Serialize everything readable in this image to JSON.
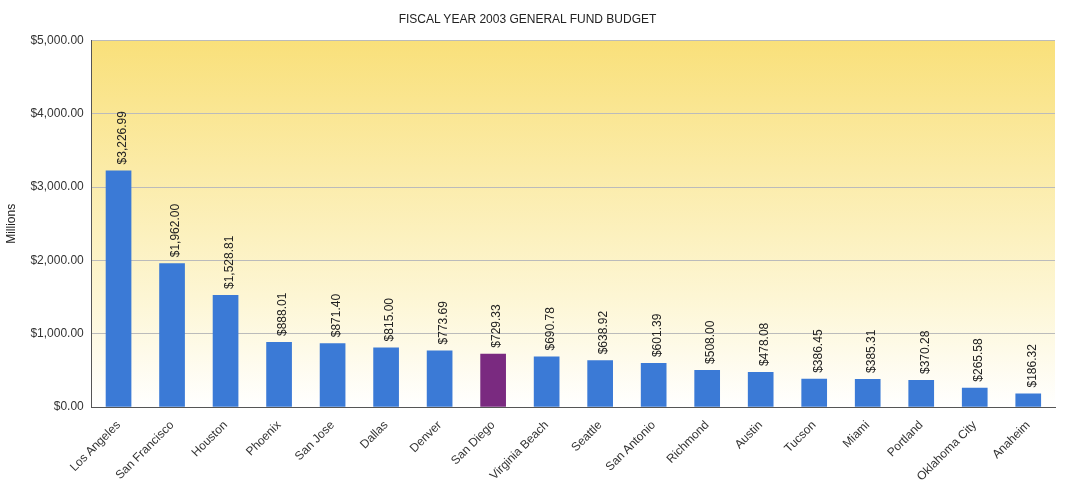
{
  "chart_data": {
    "type": "bar",
    "title": "FISCAL YEAR 2003 GENERAL FUND BUDGET",
    "ylabel": "Millions",
    "categories": [
      "Los Angeles",
      "San Francisco",
      "Houston",
      "Phoenix",
      "San Jose",
      "Dallas",
      "Denver",
      "San Diego",
      "Virginia Beach",
      "Seattle",
      "San Antonio",
      "Richmond",
      "Austin",
      "Tucson",
      "Miami",
      "Portland",
      "Oklahoma City",
      "Anaheim"
    ],
    "values": [
      3226.99,
      1962.0,
      1528.81,
      888.01,
      871.4,
      815.0,
      773.69,
      729.33,
      690.78,
      638.92,
      601.39,
      508.0,
      478.08,
      386.45,
      385.31,
      370.28,
      265.58,
      186.32
    ],
    "colors": [
      "#3b7ad6",
      "#3b7ad6",
      "#3b7ad6",
      "#3b7ad6",
      "#3b7ad6",
      "#3b7ad6",
      "#3b7ad6",
      "#7a2a80",
      "#3b7ad6",
      "#3b7ad6",
      "#3b7ad6",
      "#3b7ad6",
      "#3b7ad6",
      "#3b7ad6",
      "#3b7ad6",
      "#3b7ad6",
      "#3b7ad6",
      "#3b7ad6"
    ],
    "value_labels": [
      "$3,226.99",
      "$1,962.00",
      "$1,528.81",
      "$888.01",
      "$871.40",
      "$815.00",
      "$773.69",
      "$729.33",
      "$690.78",
      "$638.92",
      "$601.39",
      "$508.00",
      "$478.08",
      "$386.45",
      "$385.31",
      "$370.28",
      "$265.58",
      "$186.32"
    ],
    "ylim": [
      0,
      5000
    ],
    "yticks": [
      {
        "value": 0,
        "label": "$0.00"
      },
      {
        "value": 1000,
        "label": "$1,000.00"
      },
      {
        "value": 2000,
        "label": "$2,000.00"
      },
      {
        "value": 3000,
        "label": "$3,000.00"
      },
      {
        "value": 4000,
        "label": "$4,000.00"
      },
      {
        "value": 5000,
        "label": "$5,000.00"
      }
    ],
    "grid": "y",
    "legend": false
  }
}
